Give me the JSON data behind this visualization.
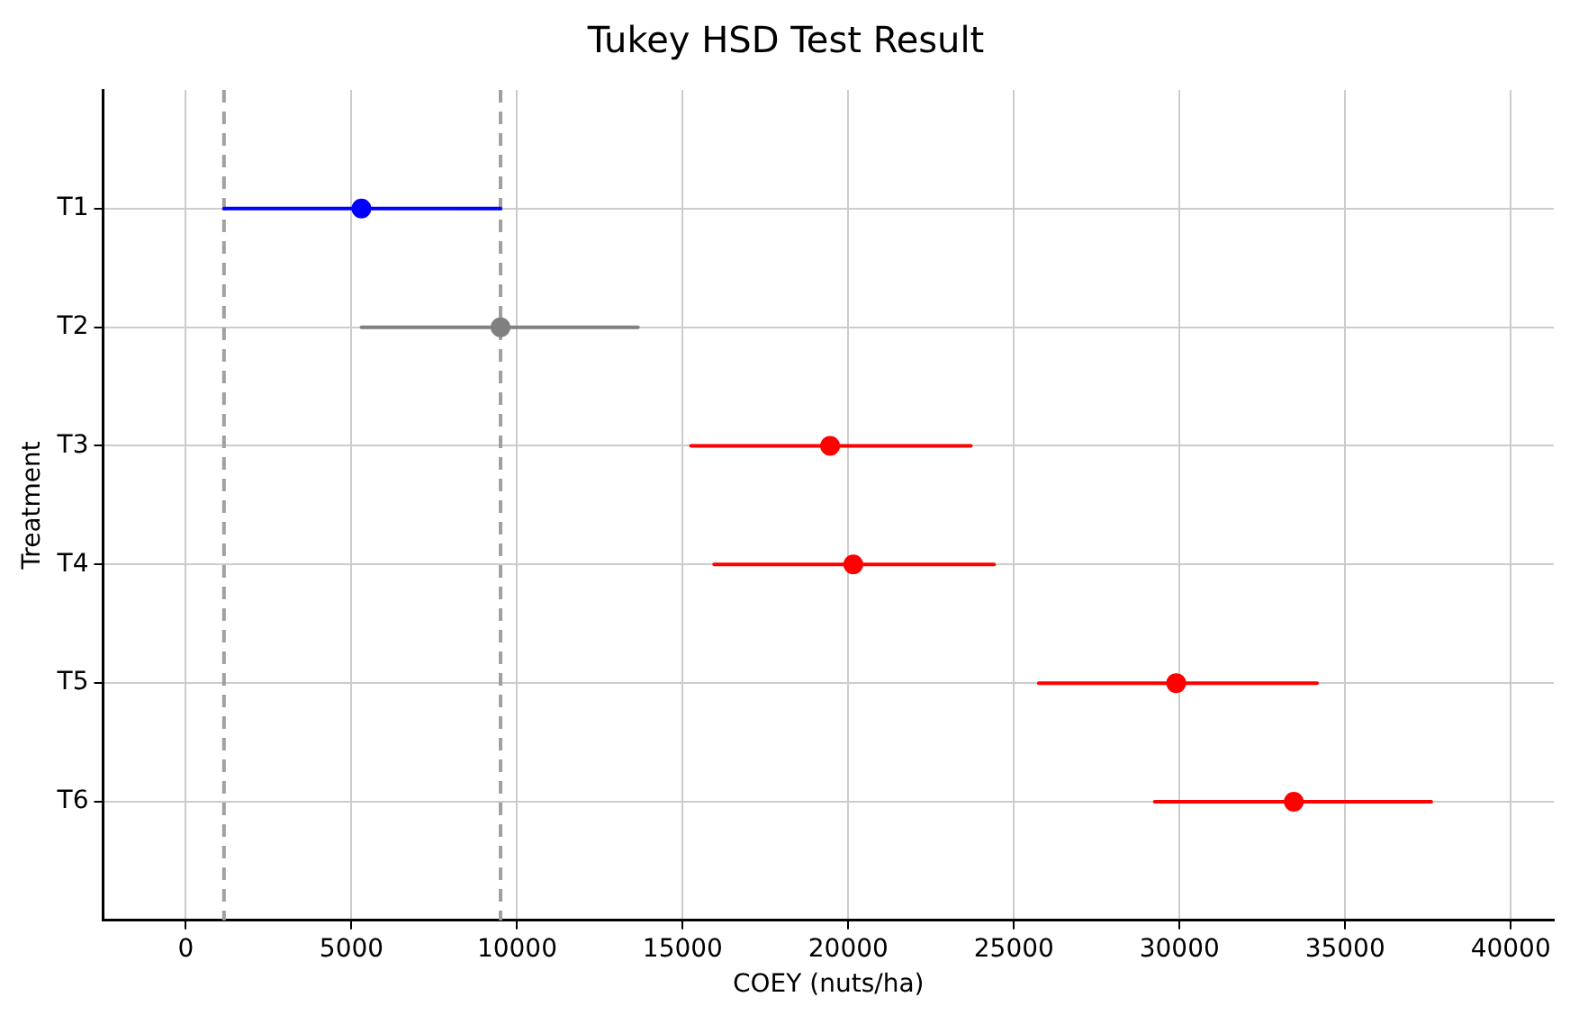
{
  "chart_data": {
    "type": "scatter",
    "orientation": "horizontal",
    "title": "Tukey HSD Test Result",
    "xlabel": "COEY (nuts/ha)",
    "ylabel": "Treatment",
    "categories": [
      "T1",
      "T2",
      "T3",
      "T4",
      "T5",
      "T6"
    ],
    "values": [
      5300,
      9500,
      19450,
      20150,
      29900,
      33450
    ],
    "errors": [
      [
        1150,
        9500
      ],
      [
        5300,
        13650
      ],
      [
        15250,
        23700
      ],
      [
        15950,
        24400
      ],
      [
        25750,
        34150
      ],
      [
        29250,
        37600
      ]
    ],
    "colors": [
      "#0000ff",
      "#808080",
      "#ff0000",
      "#ff0000",
      "#ff0000",
      "#ff0000"
    ],
    "xlim": [
      -2500,
      41300
    ],
    "xticks": [
      0,
      5000,
      10000,
      15000,
      20000,
      25000,
      30000,
      35000,
      40000
    ],
    "ref_lines": [
      {
        "axis": "x",
        "value": 1150,
        "color": "#a0a0a0",
        "line_style": "dashed"
      },
      {
        "axis": "x",
        "value": 9500,
        "color": "#a0a0a0",
        "line_style": "dashed"
      }
    ],
    "grid": true,
    "marker": "circle",
    "legend": false
  }
}
